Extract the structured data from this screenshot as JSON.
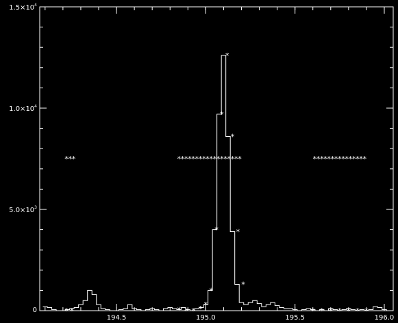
{
  "chart_data": {
    "type": "line",
    "title": "",
    "xlabel": "",
    "ylabel": "",
    "xlim": [
      194.07,
      196.05
    ],
    "ylim": [
      0,
      15000
    ],
    "grid": false,
    "colors": {
      "background": "#000000",
      "foreground": "#ffffff"
    },
    "x_ticks": [
      {
        "value": 194.5,
        "label": "194.5"
      },
      {
        "value": 195.0,
        "label": "195.0"
      },
      {
        "value": 195.5,
        "label": "195.5"
      },
      {
        "value": 196.0,
        "label": "196.0"
      }
    ],
    "y_ticks": [
      {
        "value": 0,
        "mantissa": "0",
        "exponent": ""
      },
      {
        "value": 5000,
        "mantissa": "5.0×10",
        "exponent": "3"
      },
      {
        "value": 10000,
        "mantissa": "1.0×10",
        "exponent": "4"
      },
      {
        "value": 15000,
        "mantissa": "1.5×10",
        "exponent": "4"
      }
    ],
    "series": [
      {
        "style": "histogram",
        "x": [
          194.1,
          194.125,
          194.15,
          194.175,
          194.2,
          194.225,
          194.25,
          194.275,
          194.3,
          194.325,
          194.35,
          194.375,
          194.4,
          194.425,
          194.45,
          194.475,
          194.5,
          194.525,
          194.55,
          194.575,
          194.6,
          194.625,
          194.65,
          194.675,
          194.7,
          194.725,
          194.75,
          194.775,
          194.8,
          194.825,
          194.85,
          194.875,
          194.9,
          194.925,
          194.95,
          194.975,
          195.0,
          195.025,
          195.05,
          195.075,
          195.1,
          195.125,
          195.15,
          195.175,
          195.2,
          195.225,
          195.25,
          195.275,
          195.3,
          195.325,
          195.35,
          195.375,
          195.4,
          195.425,
          195.45,
          195.475,
          195.5,
          195.525,
          195.55,
          195.575,
          195.6,
          195.625,
          195.65,
          195.675,
          195.7,
          195.725,
          195.75,
          195.775,
          195.8,
          195.825,
          195.85,
          195.875,
          195.9,
          195.925,
          195.95,
          195.975,
          196.0,
          196.025
        ],
        "values": [
          200,
          150,
          50,
          0,
          0,
          50,
          100,
          150,
          300,
          500,
          1000,
          800,
          300,
          100,
          50,
          0,
          0,
          50,
          100,
          300,
          100,
          50,
          0,
          50,
          100,
          50,
          0,
          100,
          150,
          100,
          50,
          150,
          50,
          0,
          100,
          150,
          300,
          1000,
          4000,
          9700,
          12600,
          8600,
          3900,
          1300,
          400,
          300,
          400,
          500,
          350,
          200,
          300,
          400,
          250,
          150,
          100,
          100,
          50,
          0,
          50,
          100,
          50,
          0,
          50,
          0,
          100,
          50,
          0,
          50,
          100,
          50,
          0,
          50,
          0,
          50,
          200,
          150,
          50,
          0
        ]
      },
      {
        "style": "scatter",
        "marker": "*",
        "x": [
          194.22,
          194.24,
          194.26,
          194.85,
          194.87,
          194.89,
          194.91,
          194.93,
          194.95,
          194.97,
          194.99,
          195.01,
          195.03,
          195.05,
          195.07,
          195.09,
          195.11,
          195.13,
          195.15,
          195.17,
          195.19,
          195.61,
          195.63,
          195.65,
          195.67,
          195.69,
          195.71,
          195.73,
          195.75,
          195.77,
          195.79,
          195.81,
          195.83,
          195.85,
          195.87,
          195.89
        ],
        "values": [
          7500,
          7500,
          7500,
          7500,
          7500,
          7500,
          7500,
          7500,
          7500,
          7500,
          7500,
          7500,
          7500,
          7500,
          7500,
          7500,
          7500,
          7500,
          7500,
          7500,
          7500,
          7500,
          7500,
          7500,
          7500,
          7500,
          7500,
          7500,
          7500,
          7500,
          7500,
          7500,
          7500,
          7500,
          7500,
          7500
        ]
      },
      {
        "style": "scatter",
        "marker": "*",
        "x": [
          194.22,
          194.25,
          194.85,
          194.89,
          194.93,
          194.97,
          195.0,
          195.03,
          195.06,
          195.09,
          195.12,
          195.15,
          195.18,
          195.21,
          195.6,
          195.65,
          195.7,
          195.75,
          195.8,
          195.85,
          195.9
        ],
        "values": [
          0,
          0,
          50,
          0,
          0,
          100,
          300,
          1000,
          4000,
          9700,
          12600,
          8600,
          3900,
          1300,
          0,
          0,
          0,
          0,
          0,
          0,
          0
        ]
      }
    ]
  }
}
